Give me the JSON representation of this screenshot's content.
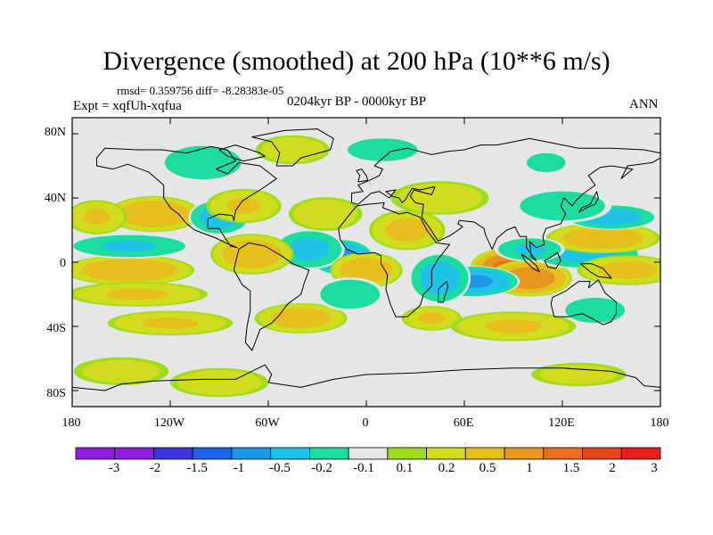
{
  "title": "Divergence (smoothed) at 200 hPa (10**6 m/s)",
  "stats_text": "rmsd= 0.359756 diff= -8.28383e-05",
  "experiment_text": "Expt = xqfUh-xqfua",
  "period_text": "0204kyr BP - 0000kyr BP",
  "season": "ANN",
  "axes": {
    "lat_ticks": [
      "80N",
      "40N",
      "0",
      "40S",
      "80S"
    ],
    "lon_ticks": [
      "180",
      "120W",
      "60W",
      "0",
      "60E",
      "120E",
      "180"
    ]
  },
  "colorbar": {
    "labels": [
      "-3",
      "-2",
      "-1.5",
      "-1",
      "-0.5",
      "-0.2",
      "-0.1",
      "0.1",
      "0.2",
      "0.5",
      "1",
      "1.5",
      "2",
      "3"
    ],
    "colors": [
      "#8c1ee0",
      "#3c32e0",
      "#1e64e6",
      "#1e96e6",
      "#1ec3e6",
      "#1edca0",
      "#e6e6e6",
      "#a0dc1e",
      "#d2dc1e",
      "#e6be1e",
      "#e6961e",
      "#e66e1e",
      "#e6461e",
      "#e61e1e"
    ]
  },
  "chart_data": {
    "type": "heatmap",
    "variable": "Divergence (smoothed) at 200 hPa",
    "units": "10**6 m/s",
    "x_range": [
      -180,
      180
    ],
    "y_range": [
      -90,
      90
    ],
    "levels": [
      -3,
      -2,
      -1.5,
      -1,
      -0.5,
      -0.2,
      -0.1,
      0.1,
      0.2,
      0.5,
      1,
      1.5,
      2,
      3
    ],
    "features": [
      {
        "lon": 85,
        "lat": -3,
        "value": 1.7,
        "rlon": 13,
        "rlat": 7
      },
      {
        "lon": 100,
        "lat": -10,
        "value": 1.5,
        "rlon": 16,
        "rlat": 7
      },
      {
        "lon": 65,
        "lat": -12,
        "value": -1.2,
        "rlon": 18,
        "rlat": 6
      },
      {
        "lon": 45,
        "lat": -10,
        "value": -0.8,
        "rlon": 12,
        "rlat": 10
      },
      {
        "lon": 135,
        "lat": 5,
        "value": -0.7,
        "rlon": 22,
        "rlat": 6
      },
      {
        "lon": 145,
        "lat": 15,
        "value": 0.9,
        "rlon": 22,
        "rlat": 6
      },
      {
        "lon": 160,
        "lat": -5,
        "value": 0.7,
        "rlon": 20,
        "rlat": 6
      },
      {
        "lon": 100,
        "lat": 8,
        "value": -0.6,
        "rlon": 14,
        "rlat": 5
      },
      {
        "lon": -15,
        "lat": 3,
        "value": -1.3,
        "rlon": 12,
        "rlat": 7
      },
      {
        "lon": -35,
        "lat": 8,
        "value": -0.7,
        "rlon": 14,
        "rlat": 8
      },
      {
        "lon": 0,
        "lat": -5,
        "value": 0.9,
        "rlon": 14,
        "rlat": 7
      },
      {
        "lon": 25,
        "lat": 20,
        "value": 0.7,
        "rlon": 15,
        "rlat": 8
      },
      {
        "lon": -70,
        "lat": 5,
        "value": 0.9,
        "rlon": 16,
        "rlat": 8
      },
      {
        "lon": -145,
        "lat": -5,
        "value": 1.0,
        "rlon": 25,
        "rlat": 6
      },
      {
        "lon": -145,
        "lat": 10,
        "value": -0.6,
        "rlon": 25,
        "rlat": 5
      },
      {
        "lon": -130,
        "lat": 30,
        "value": 1.0,
        "rlon": 18,
        "rlat": 7
      },
      {
        "lon": -165,
        "lat": 28,
        "value": 0.6,
        "rlon": 12,
        "rlat": 7
      },
      {
        "lon": -90,
        "lat": 28,
        "value": -0.8,
        "rlon": 12,
        "rlat": 7
      },
      {
        "lon": -75,
        "lat": 35,
        "value": 0.6,
        "rlon": 15,
        "rlat": 7
      },
      {
        "lon": -25,
        "lat": 30,
        "value": 0.5,
        "rlon": 15,
        "rlat": 7
      },
      {
        "lon": 45,
        "lat": 40,
        "value": 0.5,
        "rlon": 20,
        "rlat": 7
      },
      {
        "lon": 150,
        "lat": 28,
        "value": -0.8,
        "rlon": 18,
        "rlat": 5
      },
      {
        "lon": 120,
        "lat": 35,
        "value": -0.5,
        "rlon": 20,
        "rlat": 7
      },
      {
        "lon": -140,
        "lat": -20,
        "value": 0.6,
        "rlon": 28,
        "rlat": 5
      },
      {
        "lon": -120,
        "lat": -38,
        "value": 0.6,
        "rlon": 25,
        "rlat": 5
      },
      {
        "lon": -40,
        "lat": -35,
        "value": 0.8,
        "rlon": 18,
        "rlat": 6
      },
      {
        "lon": -10,
        "lat": -20,
        "value": -0.5,
        "rlon": 14,
        "rlat": 7
      },
      {
        "lon": 40,
        "lat": -35,
        "value": 0.6,
        "rlon": 12,
        "rlat": 5
      },
      {
        "lon": 90,
        "lat": -40,
        "value": 0.6,
        "rlon": 25,
        "rlat": 6
      },
      {
        "lon": 140,
        "lat": -30,
        "value": -0.5,
        "rlon": 14,
        "rlat": 6
      },
      {
        "lon": -100,
        "lat": 62,
        "value": -0.5,
        "rlon": 18,
        "rlat": 8
      },
      {
        "lon": -45,
        "lat": 70,
        "value": 0.5,
        "rlon": 15,
        "rlat": 6
      },
      {
        "lon": 10,
        "lat": 70,
        "value": -0.4,
        "rlon": 18,
        "rlat": 6
      },
      {
        "lon": 110,
        "lat": 62,
        "value": -0.4,
        "rlon": 10,
        "rlat": 5
      },
      {
        "lon": -150,
        "lat": -68,
        "value": 0.4,
        "rlon": 20,
        "rlat": 6
      },
      {
        "lon": -90,
        "lat": -75,
        "value": 0.5,
        "rlon": 20,
        "rlat": 6
      },
      {
        "lon": 130,
        "lat": -70,
        "value": 0.4,
        "rlon": 20,
        "rlat": 5
      }
    ]
  }
}
